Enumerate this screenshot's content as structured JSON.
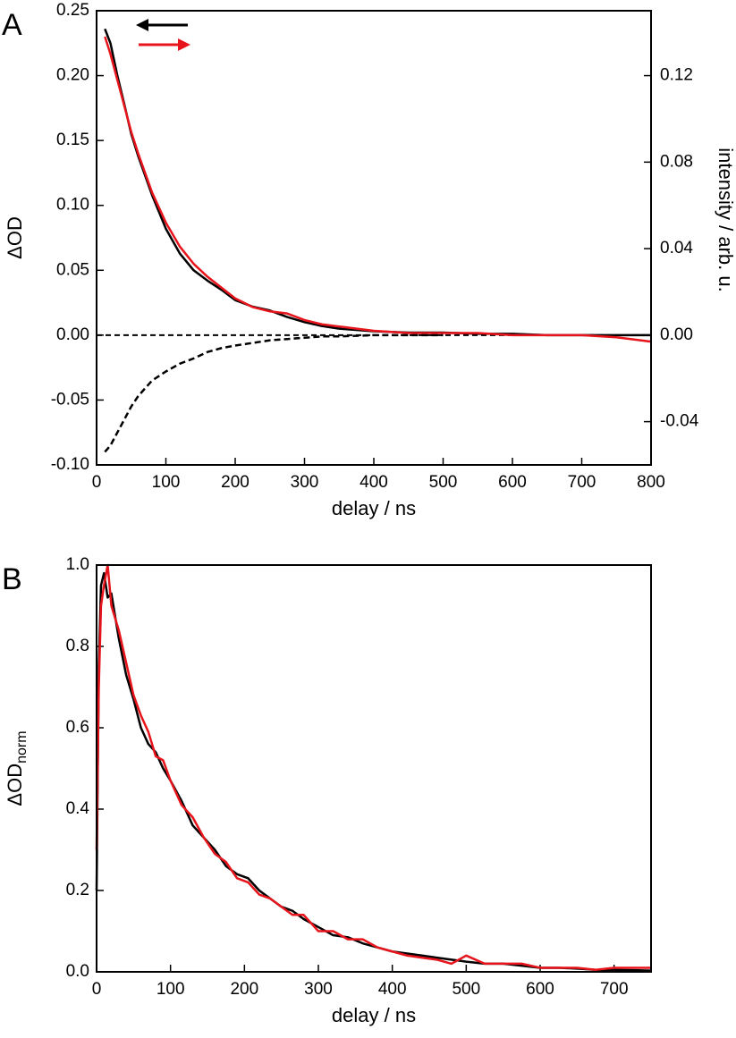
{
  "chart_data": [
    {
      "type": "line",
      "panel_label": "A",
      "xlabel": "delay / ns",
      "ylabel": "ΔOD",
      "y2label": "intensity / arb. u.",
      "x": [
        12,
        20,
        30,
        40,
        50,
        60,
        80,
        100,
        120,
        140,
        160,
        180,
        200,
        225,
        250,
        275,
        300,
        325,
        350,
        400,
        450,
        500,
        550,
        600,
        650,
        700,
        750,
        800
      ],
      "series": [
        {
          "color": "#000000",
          "values": [
            0.236,
            0.225,
            0.2,
            0.178,
            0.155,
            0.138,
            0.108,
            0.082,
            0.063,
            0.05,
            0.042,
            0.035,
            0.027,
            0.022,
            0.019,
            0.014,
            0.01,
            0.007,
            0.005,
            0.003,
            0.002,
            0.002,
            0.001,
            0.001,
            0,
            0,
            0,
            0
          ]
        },
        {
          "color": "#e8141b",
          "axis": "y2",
          "values": [
            0.138,
            0.13,
            0.118,
            0.106,
            0.094,
            0.084,
            0.066,
            0.052,
            0.041,
            0.033,
            0.027,
            0.022,
            0.017,
            0.013,
            0.011,
            0.01,
            0.007,
            0.005,
            0.004,
            0.002,
            0.001,
            0.001,
            0.001,
            0,
            0,
            0,
            -0.001,
            -0.003
          ]
        },
        {
          "color": "#000000",
          "dashed": true,
          "values": [
            -0.09,
            -0.085,
            -0.075,
            -0.065,
            -0.055,
            -0.047,
            -0.035,
            -0.028,
            -0.022,
            -0.018,
            -0.013,
            -0.01,
            -0.008,
            -0.006,
            -0.004,
            -0.003,
            -0.002,
            -0.001,
            -0.001,
            0,
            0,
            0,
            null,
            null,
            null,
            null,
            null,
            null
          ]
        }
      ],
      "zero_line": true,
      "xlim": [
        0,
        800
      ],
      "xticks": [
        0,
        100,
        200,
        300,
        400,
        500,
        600,
        700,
        800
      ],
      "ylim": [
        -0.1,
        0.25
      ],
      "yticks": [
        {
          "value": -0.1,
          "label": "-0.10"
        },
        -0.05,
        {
          "value": 0,
          "label": "0.00"
        },
        0.05,
        {
          "value": 0.1,
          "label": "0.10"
        },
        0.15,
        {
          "value": 0.2,
          "label": "0.20"
        },
        0.25
      ],
      "y2lim": [
        -0.06,
        0.15
      ],
      "y2ticks": [
        -0.04,
        {
          "value": 0,
          "label": "0.00"
        },
        0.04,
        0.08,
        0.12
      ]
    },
    {
      "type": "line",
      "panel_label": "B",
      "xlabel": "delay / ns",
      "ylabel": "ΔOD",
      "ylabel_sub": "norm",
      "x": [
        0,
        3,
        6,
        10,
        15,
        20,
        30,
        40,
        50,
        60,
        70,
        80,
        90,
        100,
        115,
        130,
        145,
        160,
        175,
        190,
        205,
        220,
        235,
        250,
        265,
        280,
        300,
        320,
        340,
        360,
        380,
        400,
        420,
        440,
        460,
        480,
        500,
        525,
        550,
        575,
        600,
        625,
        650,
        675,
        700,
        725,
        750
      ],
      "series": [
        {
          "color": "#000000",
          "values": [
            0.2,
            0.75,
            0.95,
            0.98,
            0.92,
            0.93,
            0.82,
            0.73,
            0.67,
            0.6,
            0.56,
            0.54,
            0.5,
            0.47,
            0.42,
            0.36,
            0.33,
            0.3,
            0.26,
            0.24,
            0.23,
            0.2,
            0.18,
            0.16,
            0.15,
            0.13,
            0.11,
            0.09,
            0.085,
            0.07,
            0.06,
            0.05,
            0.045,
            0.04,
            0.035,
            0.03,
            0.025,
            0.02,
            0.02,
            0.015,
            0.01,
            0.01,
            0.008,
            0.005,
            0.005,
            0.004,
            0.003
          ]
        },
        {
          "color": "#e8141b",
          "values": [
            0.3,
            0.7,
            0.9,
            0.95,
            1.0,
            0.9,
            0.84,
            0.76,
            0.68,
            0.63,
            0.59,
            0.53,
            0.52,
            0.47,
            0.41,
            0.38,
            0.33,
            0.29,
            0.27,
            0.23,
            0.22,
            0.19,
            0.18,
            0.16,
            0.14,
            0.14,
            0.1,
            0.1,
            0.08,
            0.08,
            0.06,
            0.05,
            0.04,
            0.035,
            0.03,
            0.02,
            0.04,
            0.02,
            0.02,
            0.02,
            0.01,
            0.01,
            0.01,
            0.005,
            0.01,
            0.01,
            0.01
          ]
        }
      ],
      "xlim": [
        0,
        750
      ],
      "xticks": [
        0,
        100,
        200,
        300,
        400,
        500,
        600,
        700
      ],
      "ylim": [
        0,
        1
      ],
      "yticks": [
        {
          "value": 0,
          "label": "0.0"
        },
        0.2,
        0.4,
        0.6,
        0.8,
        {
          "value": 1,
          "label": "1.0"
        }
      ]
    }
  ]
}
